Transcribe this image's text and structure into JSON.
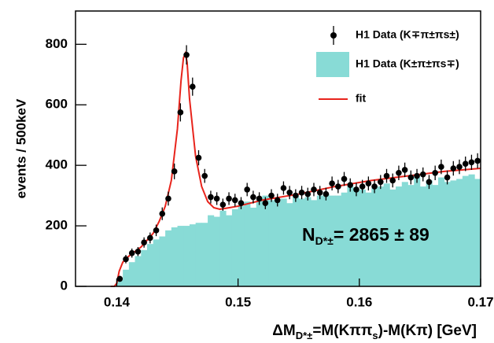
{
  "chart_data": {
    "type": "histogram",
    "ylabel": "events / 500keV",
    "xlabel_parts": [
      {
        "text": "ΔM"
      },
      {
        "text": "D*±",
        "sub": true
      },
      {
        "text": "=M(Kππ"
      },
      {
        "text": "s",
        "sub": true
      },
      {
        "text": ")-M(Kπ) [GeV]"
      }
    ],
    "xlim": [
      0.1366,
      0.17
    ],
    "ylim": [
      0,
      910
    ],
    "xticks": [
      0.14,
      0.15,
      0.16,
      0.17
    ],
    "yticks": [
      0,
      200,
      400,
      600,
      800
    ],
    "legend": "upper right",
    "points": {
      "name": "H1 Data (K∓π±πs±)",
      "color": "#000000",
      "x": [
        0.14025,
        0.14075,
        0.14125,
        0.14175,
        0.14225,
        0.14275,
        0.14325,
        0.14375,
        0.14425,
        0.14475,
        0.14525,
        0.14575,
        0.14625,
        0.14675,
        0.14725,
        0.14775,
        0.14825,
        0.14875,
        0.14925,
        0.14975,
        0.15025,
        0.15075,
        0.15125,
        0.15175,
        0.15225,
        0.15275,
        0.15325,
        0.15375,
        0.15425,
        0.15475,
        0.15525,
        0.15575,
        0.15625,
        0.15675,
        0.15725,
        0.15775,
        0.15825,
        0.15875,
        0.15925,
        0.15975,
        0.16025,
        0.16075,
        0.16125,
        0.16175,
        0.16225,
        0.16275,
        0.16325,
        0.16375,
        0.16425,
        0.16475,
        0.16525,
        0.16575,
        0.16625,
        0.16675,
        0.16725,
        0.16775,
        0.16825,
        0.16875,
        0.16925,
        0.16975
      ],
      "values": [
        25,
        90,
        110,
        115,
        145,
        160,
        185,
        240,
        290,
        380,
        575,
        765,
        660,
        425,
        365,
        295,
        290,
        270,
        290,
        285,
        275,
        320,
        295,
        290,
        275,
        300,
        285,
        325,
        310,
        300,
        310,
        305,
        320,
        310,
        305,
        340,
        330,
        355,
        335,
        320,
        330,
        340,
        330,
        345,
        365,
        350,
        375,
        385,
        360,
        365,
        370,
        345,
        375,
        395,
        360,
        390,
        395,
        405,
        410,
        415
      ],
      "errors": [
        10,
        14,
        15,
        15,
        17,
        18,
        19,
        21,
        23,
        26,
        30,
        32,
        30,
        25,
        23,
        21,
        21,
        20,
        21,
        21,
        20,
        22,
        21,
        21,
        20,
        21,
        21,
        22,
        22,
        21,
        22,
        21,
        22,
        22,
        21,
        23,
        22,
        23,
        22,
        22,
        22,
        23,
        22,
        23,
        23,
        23,
        24,
        24,
        23,
        23,
        23,
        23,
        24,
        24,
        23,
        24,
        24,
        24,
        25,
        25
      ]
    },
    "histogram": {
      "name": "H1 Data (K±π±πs∓)",
      "color": "#88dbd6",
      "bins": [
        0.14,
        0.1405,
        0.141,
        0.1415,
        0.142,
        0.1425,
        0.143,
        0.1435,
        0.144,
        0.1445,
        0.145,
        0.1455,
        0.146,
        0.1465,
        0.147,
        0.1475,
        0.148,
        0.1485,
        0.149,
        0.1495,
        0.15,
        0.1505,
        0.151,
        0.1515,
        0.152,
        0.1525,
        0.153,
        0.1535,
        0.154,
        0.1545,
        0.155,
        0.1555,
        0.156,
        0.1565,
        0.157,
        0.1575,
        0.158,
        0.1585,
        0.159,
        0.1595,
        0.16,
        0.1605,
        0.161,
        0.1615,
        0.162,
        0.1625,
        0.163,
        0.1635,
        0.164,
        0.1645,
        0.165,
        0.1655,
        0.166,
        0.1665,
        0.167,
        0.1675,
        0.168,
        0.1685,
        0.169,
        0.1695,
        0.17
      ],
      "values": [
        20,
        55,
        80,
        100,
        120,
        140,
        155,
        165,
        185,
        195,
        200,
        200,
        205,
        210,
        210,
        235,
        230,
        250,
        235,
        255,
        265,
        280,
        260,
        285,
        300,
        285,
        280,
        290,
        275,
        300,
        290,
        295,
        285,
        300,
        305,
        300,
        300,
        310,
        330,
        315,
        320,
        310,
        325,
        330,
        340,
        320,
        330,
        345,
        335,
        360,
        330,
        350,
        335,
        360,
        345,
        350,
        355,
        365,
        370,
        355
      ]
    },
    "fit": {
      "name": "fit",
      "color": "#e8241c",
      "x": [
        0.1395,
        0.1398,
        0.14,
        0.1402,
        0.1405,
        0.141,
        0.142,
        0.143,
        0.1435,
        0.144,
        0.1445,
        0.145,
        0.1453,
        0.1455,
        0.14565,
        0.1458,
        0.146,
        0.1465,
        0.147,
        0.1475,
        0.148,
        0.1485,
        0.149,
        0.15,
        0.152,
        0.155,
        0.158,
        0.161,
        0.164,
        0.167,
        0.17
      ],
      "values": [
        0,
        0,
        10,
        50,
        80,
        100,
        130,
        175,
        215,
        265,
        350,
        520,
        680,
        755,
        770,
        740,
        620,
        430,
        330,
        280,
        260,
        255,
        258,
        265,
        285,
        305,
        330,
        350,
        365,
        380,
        390
      ]
    },
    "annotation": {
      "symbol": "N",
      "subscript": "D*±",
      "text": "= 2865 ± 89"
    }
  }
}
